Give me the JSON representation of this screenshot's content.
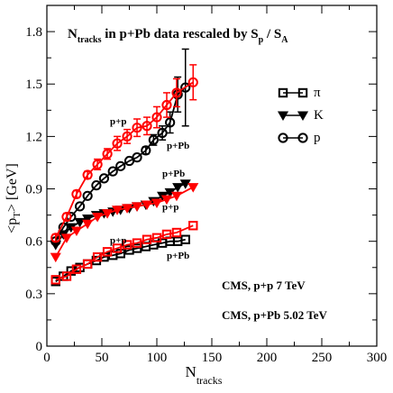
{
  "chart_data": {
    "type": "scatter",
    "title": "N",
    "title_sub": "tracks",
    "title_rest": " in p+Pb data rescaled by S",
    "title_sub2": "p",
    "title_rest2": " / S",
    "title_sub3": "A",
    "xlabel": "N",
    "xlabel_sub": "tracks",
    "ylabel": "<p",
    "ylabel_sub": "T",
    "ylabel_rest": "> [GeV]",
    "xlim": [
      0,
      300
    ],
    "ylim": [
      0,
      1.95
    ],
    "xticks": [
      "0",
      "50",
      "100",
      "150",
      "200",
      "250",
      "300"
    ],
    "yticks": [
      "0",
      "0.3",
      "0.6",
      "0.9",
      "1.2",
      "1.5",
      "1.8"
    ],
    "grid": false,
    "legend": {
      "placement": "right",
      "entries": [
        {
          "label": "π",
          "marker": "square"
        },
        {
          "label": "K",
          "marker": "triangle-down"
        },
        {
          "label": "p",
          "marker": "circle"
        }
      ]
    },
    "annotations": {
      "pp_proton": "p+p",
      "ppb_proton": "p+Pb",
      "ppb_kaon": "p+Pb",
      "pp_kaon": "p+p",
      "pp_pion": "p+p",
      "ppb_pion": "p+Pb",
      "cms_pp": "CMS, p+p 7 TeV",
      "cms_ppb": "CMS, p+Pb 5.02 TeV"
    },
    "series": [
      {
        "particle": "pi",
        "system": "pp",
        "color": "#ff0000",
        "marker": "square",
        "x": [
          8,
          18,
          27,
          37,
          46,
          55,
          64,
          73,
          82,
          91,
          100,
          109,
          118,
          133
        ],
        "y": [
          0.38,
          0.4,
          0.44,
          0.47,
          0.51,
          0.54,
          0.56,
          0.58,
          0.59,
          0.61,
          0.62,
          0.64,
          0.65,
          0.69
        ]
      },
      {
        "particle": "pi",
        "system": "pPb",
        "color": "#000000",
        "marker": "square",
        "x": [
          8,
          15,
          22,
          30,
          37,
          45,
          52,
          60,
          67,
          75,
          82,
          90,
          97,
          105,
          112,
          119,
          126
        ],
        "y": [
          0.37,
          0.4,
          0.43,
          0.45,
          0.47,
          0.49,
          0.51,
          0.52,
          0.53,
          0.55,
          0.56,
          0.57,
          0.58,
          0.59,
          0.6,
          0.6,
          0.61
        ]
      },
      {
        "particle": "K",
        "system": "pp",
        "color": "#ff0000",
        "marker": "triangle-down",
        "x": [
          8,
          18,
          27,
          37,
          46,
          55,
          64,
          73,
          82,
          91,
          100,
          109,
          118,
          133
        ],
        "y": [
          0.51,
          0.62,
          0.66,
          0.7,
          0.74,
          0.76,
          0.78,
          0.79,
          0.8,
          0.81,
          0.82,
          0.84,
          0.86,
          0.91
        ]
      },
      {
        "particle": "K",
        "system": "pPb",
        "color": "#000000",
        "marker": "triangle-down",
        "x": [
          8,
          15,
          22,
          30,
          37,
          45,
          52,
          60,
          67,
          75,
          82,
          90,
          97,
          105,
          112,
          119,
          126
        ],
        "y": [
          0.58,
          0.64,
          0.68,
          0.71,
          0.73,
          0.75,
          0.76,
          0.77,
          0.78,
          0.79,
          0.8,
          0.81,
          0.83,
          0.86,
          0.88,
          0.91,
          0.93
        ]
      },
      {
        "particle": "p",
        "system": "pp",
        "color": "#ff0000",
        "marker": "circle",
        "x": [
          8,
          18,
          27,
          37,
          46,
          55,
          64,
          73,
          82,
          91,
          100,
          109,
          118,
          133
        ],
        "y": [
          0.62,
          0.74,
          0.87,
          0.98,
          1.04,
          1.1,
          1.16,
          1.2,
          1.25,
          1.26,
          1.31,
          1.38,
          1.45,
          1.51
        ],
        "err": [
          0.02,
          0.02,
          0.02,
          0.02,
          0.03,
          0.03,
          0.04,
          0.04,
          0.05,
          0.05,
          0.06,
          0.07,
          0.08,
          0.1
        ]
      },
      {
        "particle": "p",
        "system": "pPb",
        "color": "#000000",
        "marker": "circle",
        "x": [
          8,
          15,
          22,
          30,
          37,
          45,
          52,
          60,
          67,
          75,
          82,
          90,
          97,
          105,
          112,
          119,
          126
        ],
        "y": [
          0.6,
          0.68,
          0.74,
          0.8,
          0.86,
          0.92,
          0.96,
          1.0,
          1.03,
          1.06,
          1.08,
          1.12,
          1.18,
          1.22,
          1.28,
          1.44,
          1.48
        ],
        "err": [
          0.01,
          0.01,
          0.01,
          0.01,
          0.01,
          0.01,
          0.01,
          0.01,
          0.01,
          0.01,
          0.01,
          0.02,
          0.03,
          0.04,
          0.06,
          0.1,
          0.22
        ]
      }
    ]
  }
}
